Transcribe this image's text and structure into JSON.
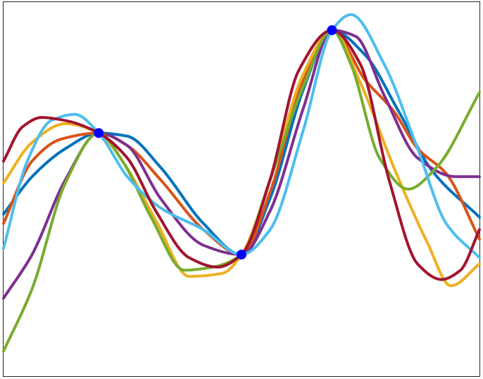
{
  "chart_data": {
    "type": "line",
    "title": "",
    "xlabel": "",
    "ylabel": "",
    "xlim": [
      0,
      10
    ],
    "ylim": [
      -3,
      3
    ],
    "grid": false,
    "legend": "none",
    "tick_labels": "none",
    "observed_points": {
      "color": "#0000ff",
      "x": [
        2.0,
        5.0,
        6.9
      ],
      "y": [
        0.9,
        -1.05,
        2.55
      ]
    },
    "series": [
      {
        "color": "#0072bd",
        "x": [
          0.0,
          0.6,
          1.3,
          2.0,
          2.6,
          3.3,
          4.2,
          5.0,
          5.6,
          6.3,
          6.9,
          7.6,
          8.3,
          9.0,
          10.0
        ],
        "y": [
          -0.4,
          0.2,
          0.65,
          0.9,
          0.85,
          0.35,
          -0.55,
          -1.05,
          -0.15,
          1.6,
          2.55,
          2.15,
          1.25,
          0.3,
          -0.45
        ]
      },
      {
        "color": "#d95319",
        "x": [
          0.0,
          0.6,
          1.2,
          2.0,
          2.6,
          3.3,
          4.2,
          5.0,
          5.6,
          6.3,
          6.9,
          7.6,
          8.2,
          8.7,
          9.3,
          10.0
        ],
        "y": [
          -0.55,
          0.45,
          0.8,
          0.9,
          0.7,
          0.15,
          -0.65,
          -1.05,
          -0.05,
          1.75,
          2.55,
          1.75,
          1.25,
          0.65,
          0.25,
          -0.8
        ]
      },
      {
        "color": "#edb120",
        "x": [
          0.0,
          0.6,
          1.3,
          2.0,
          2.5,
          3.2,
          3.9,
          4.6,
          5.0,
          5.6,
          6.3,
          6.9,
          7.5,
          8.2,
          8.9,
          9.4,
          10.0
        ],
        "y": [
          0.1,
          0.75,
          1.05,
          0.9,
          0.45,
          -0.5,
          -1.4,
          -1.35,
          -1.05,
          0.15,
          1.85,
          2.55,
          1.7,
          0.35,
          -0.85,
          -1.55,
          -1.2
        ]
      },
      {
        "color": "#7e2f8e",
        "x": [
          0.0,
          0.6,
          1.3,
          2.0,
          2.6,
          3.3,
          4.2,
          5.0,
          5.6,
          6.3,
          6.9,
          7.4,
          8.0,
          8.7,
          9.5,
          10.0
        ],
        "y": [
          -1.75,
          -1.05,
          0.15,
          0.9,
          0.7,
          -0.15,
          -0.9,
          -1.05,
          -0.35,
          1.3,
          2.55,
          2.45,
          1.5,
          0.5,
          0.2,
          0.2
        ]
      },
      {
        "color": "#77ac30",
        "x": [
          0.0,
          0.6,
          1.3,
          2.0,
          2.5,
          3.1,
          3.8,
          4.4,
          5.0,
          5.6,
          6.3,
          6.9,
          7.3,
          7.9,
          8.5,
          9.1,
          10.0
        ],
        "y": [
          -2.6,
          -1.6,
          0.1,
          0.9,
          0.45,
          -0.45,
          -1.3,
          -1.25,
          -1.05,
          0.15,
          1.65,
          2.55,
          2.0,
          0.5,
          0.0,
          0.35,
          1.55
        ]
      },
      {
        "color": "#4dbeee",
        "x": [
          0.0,
          0.5,
          1.0,
          1.5,
          2.0,
          2.6,
          3.3,
          4.2,
          5.0,
          5.6,
          6.3,
          6.9,
          7.3,
          8.0,
          8.7,
          9.3,
          10.0
        ],
        "y": [
          -0.95,
          0.45,
          1.1,
          1.2,
          0.9,
          0.2,
          -0.3,
          -0.65,
          -1.05,
          -0.65,
          0.95,
          2.55,
          2.8,
          2.0,
          0.65,
          -0.55,
          -1.1
        ]
      },
      {
        "color": "#a2142f",
        "x": [
          0.0,
          0.4,
          0.8,
          1.3,
          2.0,
          2.6,
          3.2,
          3.9,
          4.5,
          5.0,
          5.6,
          6.2,
          6.9,
          7.5,
          8.1,
          8.7,
          9.2,
          9.6,
          10.0
        ],
        "y": [
          0.45,
          1.0,
          1.15,
          1.1,
          0.9,
          0.5,
          -0.35,
          -1.1,
          -1.25,
          -1.05,
          0.15,
          1.9,
          2.55,
          2.0,
          0.15,
          -1.2,
          -1.45,
          -1.3,
          -0.65
        ]
      }
    ]
  }
}
